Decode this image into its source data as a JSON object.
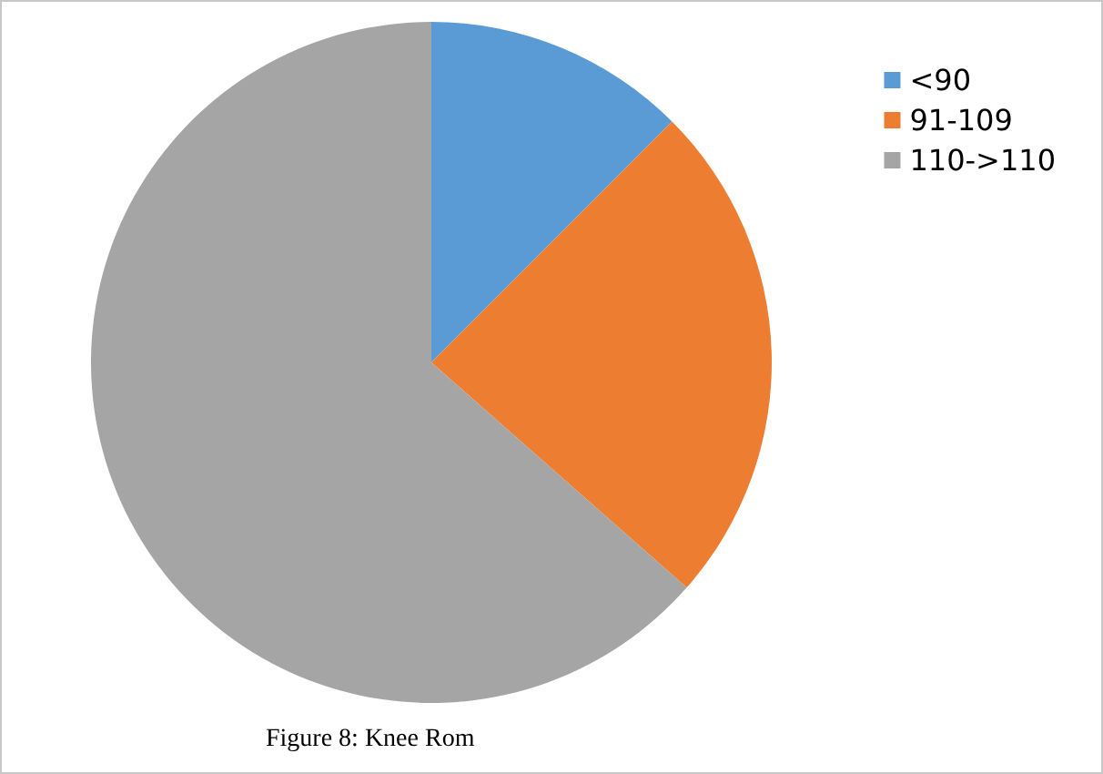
{
  "chart_data": {
    "type": "pie",
    "title": "Figure 8: Knee Rom",
    "categories": [
      "<90",
      "91-109",
      "110->110"
    ],
    "values": [
      12.5,
      24,
      63.5
    ],
    "colors": [
      "#5b9bd5",
      "#ed7d31",
      "#a5a5a5"
    ],
    "legend": "top right"
  }
}
